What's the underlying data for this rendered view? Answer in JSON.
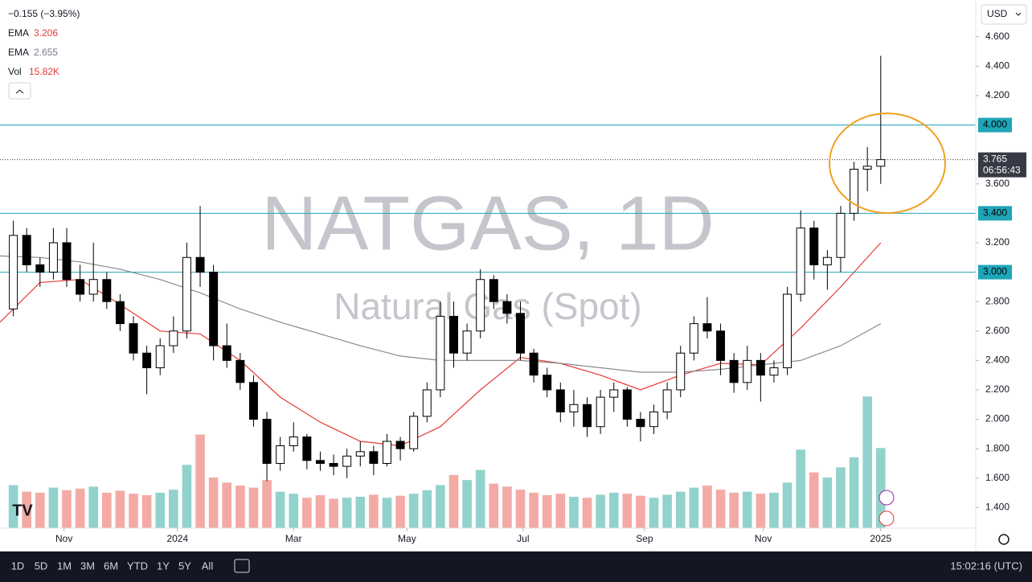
{
  "chart_data": {
    "type": "candlestick",
    "title": "NATGAS, 1D",
    "subtitle": "Natural Gas (Spot)",
    "currency": "USD",
    "change_label": "−0.155 (−3.95%)",
    "x": [
      1,
      2,
      3,
      4,
      5,
      6,
      7,
      8,
      9,
      10,
      11,
      12,
      13,
      14,
      15,
      16,
      17,
      18,
      19,
      20,
      21,
      22,
      23,
      24,
      25,
      26,
      27,
      28,
      29,
      30,
      31,
      32,
      33,
      34,
      35,
      36,
      37,
      38,
      39,
      40,
      41,
      42,
      43,
      44,
      45,
      46,
      47,
      48,
      49,
      50,
      51,
      52,
      53,
      54,
      55,
      56,
      57,
      58,
      59,
      60,
      61,
      62,
      63,
      64,
      65,
      66
    ],
    "open": [
      2.75,
      3.25,
      3.05,
      3.0,
      3.2,
      2.95,
      2.85,
      2.95,
      2.8,
      2.65,
      2.45,
      2.35,
      2.5,
      2.6,
      3.1,
      3.0,
      2.5,
      2.4,
      2.25,
      2.0,
      1.7,
      1.82,
      1.88,
      1.72,
      1.7,
      1.68,
      1.75,
      1.78,
      1.7,
      1.85,
      1.8,
      2.02,
      2.2,
      2.7,
      2.45,
      2.6,
      2.95,
      2.8,
      2.72,
      2.45,
      2.3,
      2.2,
      2.05,
      2.1,
      1.95,
      2.15,
      2.2,
      2.0,
      1.95,
      2.05,
      2.2,
      2.45,
      2.65,
      2.6,
      2.4,
      2.25,
      2.4,
      2.3,
      2.35,
      2.85,
      3.3,
      3.05,
      3.1,
      3.4,
      3.7,
      3.72
    ],
    "high": [
      3.35,
      3.3,
      3.1,
      3.3,
      3.3,
      3.05,
      3.2,
      3.0,
      2.85,
      2.7,
      2.5,
      2.55,
      2.7,
      3.2,
      3.45,
      3.05,
      2.65,
      2.45,
      2.3,
      2.05,
      1.88,
      1.98,
      1.9,
      1.78,
      1.76,
      1.8,
      1.85,
      1.82,
      1.9,
      1.88,
      2.05,
      2.25,
      2.8,
      2.8,
      2.65,
      3.02,
      2.98,
      2.85,
      2.8,
      2.48,
      2.35,
      2.25,
      2.2,
      2.15,
      2.2,
      2.25,
      2.22,
      2.05,
      2.1,
      2.25,
      2.5,
      2.7,
      2.83,
      2.65,
      2.45,
      2.5,
      2.45,
      2.4,
      2.9,
      3.42,
      3.35,
      3.15,
      3.45,
      3.75,
      3.85,
      4.47
    ],
    "low": [
      2.7,
      3.0,
      2.9,
      2.95,
      2.9,
      2.8,
      2.8,
      2.75,
      2.6,
      2.4,
      2.17,
      2.3,
      2.45,
      2.55,
      2.9,
      2.4,
      2.35,
      2.2,
      1.95,
      1.58,
      1.65,
      1.78,
      1.66,
      1.65,
      1.62,
      1.6,
      1.68,
      1.62,
      1.68,
      1.72,
      1.78,
      1.98,
      2.15,
      2.35,
      2.4,
      2.55,
      2.75,
      2.65,
      2.4,
      2.25,
      2.15,
      1.98,
      1.95,
      1.88,
      1.9,
      2.05,
      1.95,
      1.85,
      1.9,
      2.0,
      2.15,
      2.4,
      2.55,
      2.3,
      2.18,
      2.2,
      2.12,
      2.25,
      2.3,
      2.8,
      2.95,
      2.88,
      3.0,
      3.35,
      3.55,
      3.6
    ],
    "close": [
      3.25,
      3.05,
      3.0,
      3.2,
      2.95,
      2.85,
      2.95,
      2.8,
      2.65,
      2.45,
      2.35,
      2.5,
      2.6,
      3.1,
      3.0,
      2.5,
      2.4,
      2.25,
      2.0,
      1.7,
      1.82,
      1.88,
      1.72,
      1.7,
      1.68,
      1.75,
      1.78,
      1.7,
      1.85,
      1.8,
      2.02,
      2.2,
      2.7,
      2.45,
      2.6,
      2.95,
      2.8,
      2.72,
      2.45,
      2.3,
      2.2,
      2.05,
      2.1,
      1.95,
      2.15,
      2.2,
      2.0,
      1.95,
      2.05,
      2.2,
      2.45,
      2.65,
      2.6,
      2.4,
      2.25,
      2.4,
      2.3,
      2.35,
      2.85,
      3.3,
      3.05,
      3.1,
      3.4,
      3.7,
      3.72,
      3.765
    ],
    "volume": [
      8.5,
      7.2,
      7.0,
      8.0,
      7.5,
      7.8,
      8.2,
      7.0,
      7.4,
      6.8,
      6.5,
      7.0,
      7.6,
      12.5,
      18.5,
      10.0,
      9.0,
      8.4,
      8.0,
      9.5,
      7.2,
      6.8,
      6.0,
      6.5,
      5.8,
      6.0,
      6.2,
      6.6,
      6.0,
      6.4,
      6.8,
      7.5,
      8.5,
      10.5,
      9.5,
      11.5,
      8.8,
      8.2,
      7.6,
      7.0,
      6.5,
      6.8,
      6.2,
      6.0,
      6.6,
      7.0,
      6.8,
      6.4,
      6.0,
      6.6,
      7.2,
      8.0,
      8.4,
      7.6,
      7.0,
      7.2,
      6.8,
      7.0,
      9.0,
      15.5,
      11.0,
      10.0,
      12.0,
      14.0,
      26.0,
      15.82
    ],
    "volume_last_label": "15.82K",
    "indicators": [
      {
        "name": "EMA",
        "last": 3.206,
        "color": "#e53935",
        "x": [
          0,
          3,
          6,
          9,
          12,
          15,
          18,
          21,
          24,
          27,
          30,
          33,
          36,
          39,
          42,
          45,
          48,
          51,
          54,
          57,
          60,
          63,
          66
        ],
        "values": [
          2.66,
          2.93,
          2.95,
          2.78,
          2.6,
          2.58,
          2.4,
          2.15,
          1.98,
          1.85,
          1.82,
          1.95,
          2.2,
          2.42,
          2.38,
          2.3,
          2.2,
          2.3,
          2.38,
          2.37,
          2.62,
          2.9,
          3.2
        ]
      },
      {
        "name": "EMA",
        "last": 2.655,
        "color": "#8a8a8a",
        "x": [
          0,
          3,
          6,
          9,
          12,
          15,
          18,
          21,
          24,
          27,
          30,
          33,
          36,
          39,
          42,
          45,
          48,
          51,
          54,
          57,
          60,
          63,
          66
        ],
        "values": [
          3.11,
          3.1,
          3.07,
          3.02,
          2.95,
          2.86,
          2.75,
          2.66,
          2.58,
          2.5,
          2.43,
          2.4,
          2.4,
          2.4,
          2.38,
          2.35,
          2.32,
          2.32,
          2.34,
          2.37,
          2.4,
          2.5,
          2.65
        ]
      }
    ],
    "levels": [
      {
        "value": 4.0,
        "label": "4.000"
      },
      {
        "value": 3.4,
        "label": "3.400"
      },
      {
        "value": 3.0,
        "label": "3.000"
      }
    ],
    "last_price": {
      "value": 3.765,
      "label": "3.765"
    },
    "countdown": "06:56:43",
    "xlim": [
      0,
      73
    ],
    "ylim": [
      1.26,
      4.85
    ],
    "xticks": [
      {
        "value": 4.8,
        "label": "Nov"
      },
      {
        "value": 13.3,
        "label": "2024"
      },
      {
        "value": 22.0,
        "label": "Mar"
      },
      {
        "value": 30.5,
        "label": "May"
      },
      {
        "value": 39.2,
        "label": "Jul"
      },
      {
        "value": 48.3,
        "label": "Sep"
      },
      {
        "value": 57.2,
        "label": "Nov"
      },
      {
        "value": 66.0,
        "label": "2025"
      }
    ],
    "yticks": [
      {
        "value": 1.4,
        "label": "1.400"
      },
      {
        "value": 1.6,
        "label": "1.600"
      },
      {
        "value": 1.8,
        "label": "1.800"
      },
      {
        "value": 2.0,
        "label": "2.000"
      },
      {
        "value": 2.2,
        "label": "2.200"
      },
      {
        "value": 2.4,
        "label": "2.400"
      },
      {
        "value": 2.6,
        "label": "2.600"
      },
      {
        "value": 2.8,
        "label": "2.800"
      },
      {
        "value": 3.2,
        "label": "3.200"
      },
      {
        "value": 3.6,
        "label": "3.600"
      },
      {
        "value": 4.2,
        "label": "4.200"
      },
      {
        "value": 4.4,
        "label": "4.400"
      },
      {
        "value": 4.6,
        "label": "4.600"
      }
    ],
    "up_color": "#ffffff",
    "down_color": "#000000",
    "level_color": "#1fa5b8",
    "volume_up_color": "#92d2cc",
    "volume_down_color": "#f3aaa5"
  },
  "toolbar": {
    "ranges": [
      "1D",
      "5D",
      "1M",
      "3M",
      "6M",
      "YTD",
      "1Y",
      "5Y",
      "All"
    ],
    "clock": "15:02:16 (UTC)"
  }
}
